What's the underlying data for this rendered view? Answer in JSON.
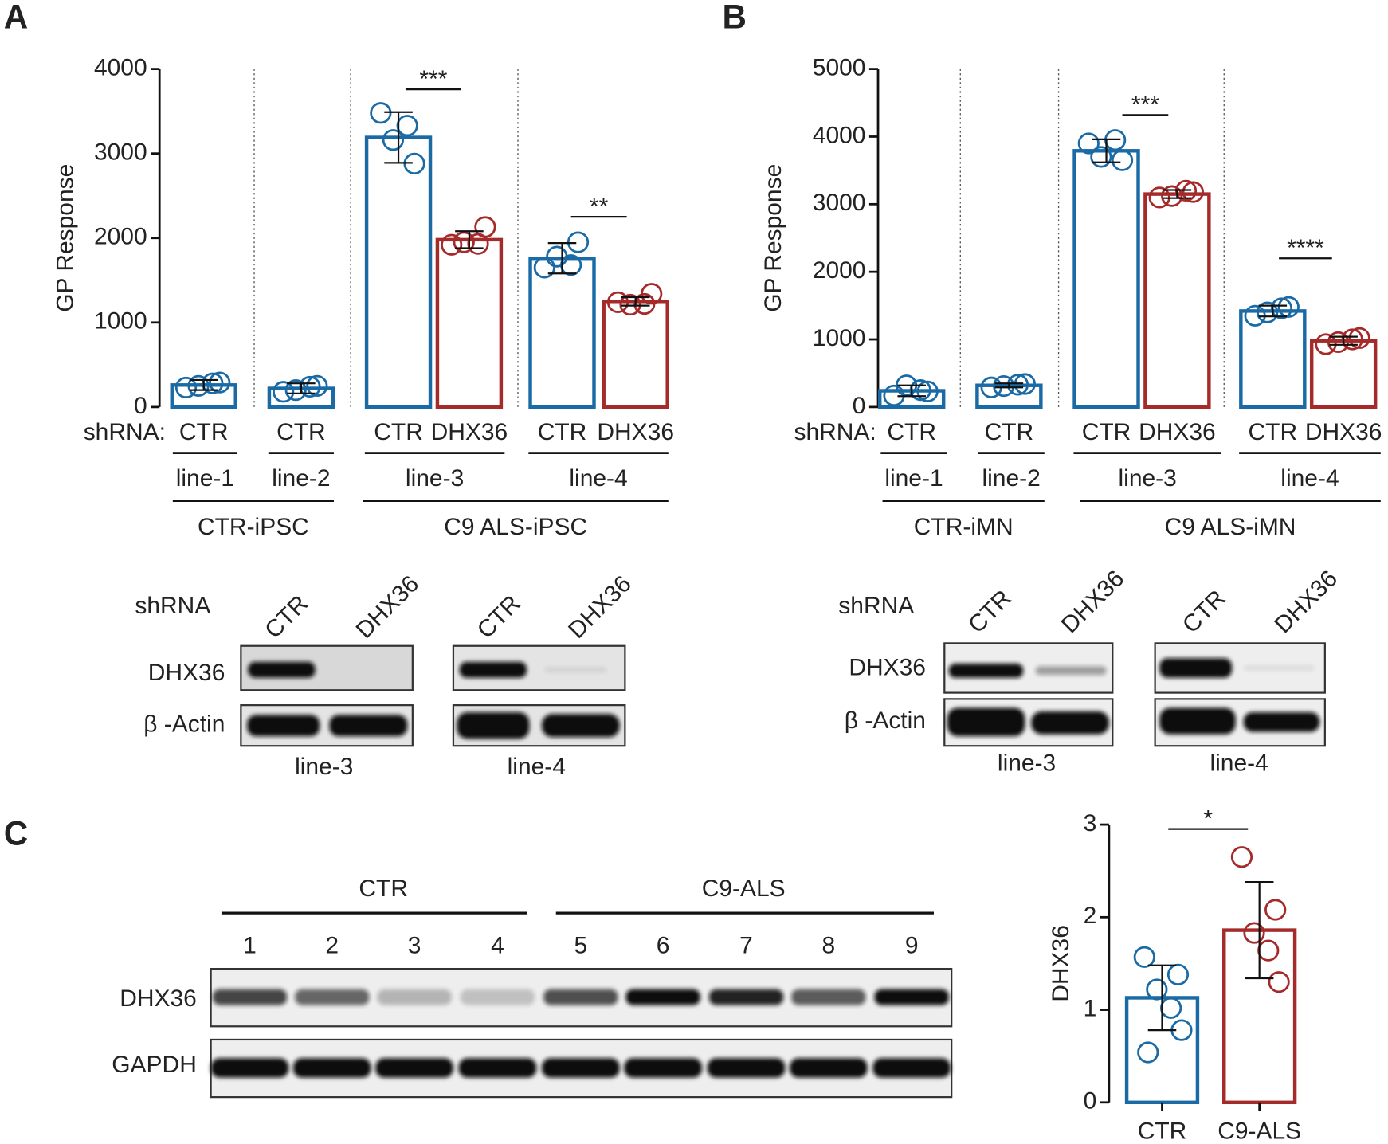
{
  "panel_labels": [
    "A",
    "B",
    "C"
  ],
  "chart_data": [
    {
      "type": "bar",
      "y_label": "GP Response",
      "x_prefix": "shRNA:",
      "categories": [
        "CTR",
        "CTR",
        "CTR",
        "DHX36",
        "CTR",
        "DHX36"
      ],
      "values": [
        260,
        220,
        3190,
        1980,
        1760,
        1250
      ],
      "errors": [
        60,
        60,
        300,
        100,
        180,
        50
      ],
      "points": [
        [
          230,
          290,
          250,
          280
        ],
        [
          180,
          250,
          200,
          240
        ],
        [
          3480,
          2880,
          3160,
          3330
        ],
        [
          1920,
          2130,
          1950,
          1930
        ],
        [
          1650,
          1950,
          1780,
          1680
        ],
        [
          1240,
          1340,
          1210,
          1220
        ]
      ],
      "colors": [
        "#1a6aa6",
        "#1a6aa6",
        "#1a6aa6",
        "#a52a2a",
        "#1a6aa6",
        "#a52a2a"
      ],
      "lines": [
        "line-1",
        "line-2",
        "line-3",
        "line-4"
      ],
      "cohorts": [
        "CTR-iPSC",
        "C9 ALS-iPSC"
      ],
      "significance": [
        "***",
        "**"
      ],
      "ylim": [
        0,
        4000
      ],
      "yticks": [
        0,
        1000,
        2000,
        3000,
        4000
      ]
    },
    {
      "type": "bar",
      "y_label": "GP Response",
      "x_prefix": "shRNA:",
      "categories": [
        "CTR",
        "CTR",
        "CTR",
        "DHX36",
        "CTR",
        "DHX36"
      ],
      "values": [
        240,
        320,
        3790,
        3150,
        1420,
        980
      ],
      "errors": [
        80,
        30,
        170,
        60,
        80,
        60
      ],
      "points": [
        [
          170,
          230,
          320,
          250
        ],
        [
          290,
          340,
          310,
          330
        ],
        [
          3900,
          3650,
          3700,
          3950
        ],
        [
          3100,
          3180,
          3120,
          3200
        ],
        [
          1350,
          1480,
          1400,
          1460
        ],
        [
          930,
          1020,
          960,
          1000
        ]
      ],
      "colors": [
        "#1a6aa6",
        "#1a6aa6",
        "#1a6aa6",
        "#a52a2a",
        "#1a6aa6",
        "#a52a2a"
      ],
      "lines": [
        "line-1",
        "line-2",
        "line-3",
        "line-4"
      ],
      "cohorts": [
        "CTR-iMN",
        "C9 ALS-iMN"
      ],
      "significance": [
        "***",
        "****"
      ],
      "ylim": [
        0,
        5000
      ],
      "yticks": [
        0,
        1000,
        2000,
        3000,
        4000,
        5000
      ]
    },
    {
      "type": "bar",
      "y_label": "DHX36",
      "categories": [
        "CTR",
        "C9-ALS"
      ],
      "values": [
        1.13,
        1.86
      ],
      "errors": [
        0.35,
        0.52
      ],
      "points": [
        [
          1.57,
          1.38,
          1.22,
          1.02,
          0.78,
          0.54
        ],
        [
          2.65,
          2.08,
          1.83,
          1.64,
          1.3
        ]
      ],
      "colors": [
        "#1a6aa6",
        "#a52a2a"
      ],
      "significance": [
        "*"
      ],
      "ylim": [
        0,
        3
      ],
      "yticks": [
        0,
        1,
        2,
        3
      ]
    }
  ],
  "blots": [
    {
      "shrna_label": "shRNA",
      "lanes": [
        "CTR",
        "DHX36"
      ],
      "proteins": [
        "DHX36",
        "β -Actin"
      ],
      "lines": [
        "line-3",
        "line-4"
      ]
    },
    {
      "shrna_label": "shRNA",
      "lanes": [
        "CTR",
        "DHX36"
      ],
      "proteins": [
        "DHX36",
        "β -Actin"
      ],
      "lines": [
        "line-3",
        "line-4"
      ]
    },
    {
      "groups": [
        "CTR",
        "C9-ALS"
      ],
      "lanes": [
        "1",
        "2",
        "3",
        "4",
        "5",
        "6",
        "7",
        "8",
        "9"
      ],
      "proteins": [
        "DHX36",
        "GAPDH"
      ]
    }
  ]
}
